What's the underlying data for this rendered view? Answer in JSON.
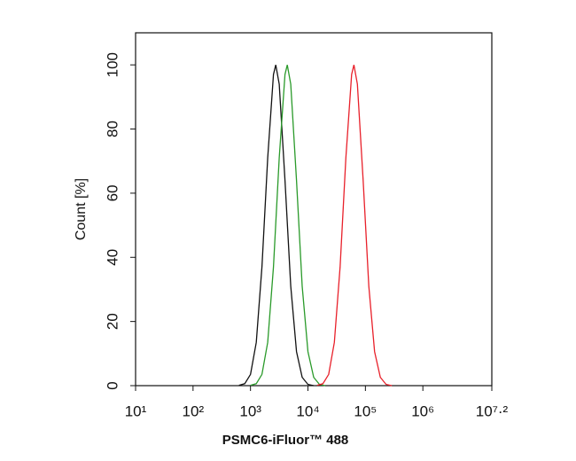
{
  "chart_data": {
    "type": "line",
    "x_label": "PSMC6-iFluor™ 488",
    "y_label": "Count [%]",
    "xscale": "log",
    "xlim": [
      10,
      15848931.92
    ],
    "ylim": [
      0,
      110
    ],
    "xticks": [
      {
        "value": 10,
        "label": "10¹"
      },
      {
        "value": 100,
        "label": "10²"
      },
      {
        "value": 1000,
        "label": "10³"
      },
      {
        "value": 10000,
        "label": "10⁴"
      },
      {
        "value": 100000,
        "label": "10⁵"
      },
      {
        "value": 1000000,
        "label": "10⁶"
      },
      {
        "value": 15848931.92,
        "label": "10⁷·²"
      }
    ],
    "yticks": [
      0,
      20,
      40,
      60,
      80,
      100
    ],
    "series": [
      {
        "color": "#111111",
        "x": [
          631,
          794,
          1000,
          1259,
          1585,
          1995,
          2512,
          2754,
          3162,
          3981,
          5012,
          6310,
          7943,
          10000,
          12589
        ],
        "values": [
          0.1,
          0.6,
          3.5,
          13.5,
          37,
          71,
          97,
          100,
          94,
          64,
          31,
          10.6,
          2.6,
          0.4,
          0
        ]
      },
      {
        "color": "#2a9a2a",
        "x": [
          1000,
          1259,
          1585,
          1995,
          2512,
          3162,
          3981,
          4365,
          5012,
          6310,
          7943,
          10000,
          12589,
          15849,
          19953
        ],
        "values": [
          0.1,
          0.6,
          3.5,
          13.5,
          37,
          71,
          97,
          100,
          94,
          64,
          31,
          10.6,
          2.6,
          0.4,
          0
        ]
      },
      {
        "color": "#e8202a",
        "x": [
          14454,
          18197,
          22909,
          28840,
          36308,
          45709,
          57544,
          63096,
          72444,
          91201,
          114815,
          144544,
          181970,
          229087,
          288403
        ],
        "values": [
          0.1,
          0.6,
          3.5,
          13.5,
          37,
          71,
          97,
          100,
          94,
          64,
          31,
          10.6,
          2.6,
          0.4,
          0
        ]
      }
    ]
  }
}
